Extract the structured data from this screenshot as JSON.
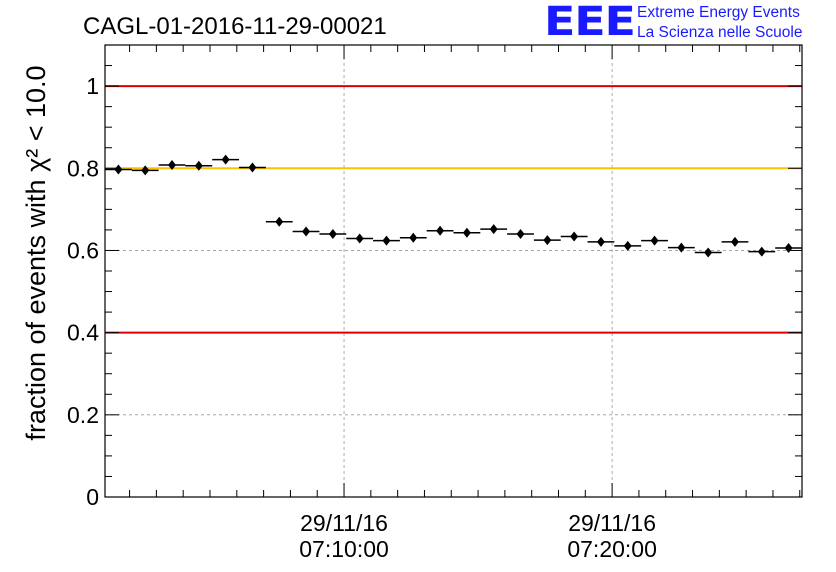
{
  "logo": {
    "mark": "EEE",
    "line1": "Extreme Energy Events",
    "line2": "La Scienza nelle Scuole",
    "color": "#1a1aff"
  },
  "chart_data": {
    "type": "scatter",
    "title": "CAGL-01-2016-11-29-00021",
    "ylabel": "fraction of events with χ² < 10.0",
    "ylim": [
      0,
      1.1
    ],
    "yticks": [
      0,
      0.2,
      0.4,
      0.6,
      0.8,
      1
    ],
    "ytick_labels": [
      "0",
      "0.2",
      "0.4",
      "0.6",
      "0.8",
      "1"
    ],
    "xlim": [
      "2016-11-29 07:01:05",
      "2016-11-29 07:27:05"
    ],
    "xticks": [
      "2016-11-29 07:10:00",
      "2016-11-29 07:20:00"
    ],
    "xtick_labels": [
      [
        "29/11/16",
        "07:10:00"
      ],
      [
        "29/11/16",
        "07:20:00"
      ]
    ],
    "grid": true,
    "reference_lines": [
      {
        "y": 1.0,
        "color": "#dd0000"
      },
      {
        "y": 0.8,
        "color": "#ffc000"
      },
      {
        "y": 0.4,
        "color": "#dd0000"
      }
    ],
    "series": [
      {
        "color": "#000000",
        "x": [
          "2016-11-29 07:01:35",
          "2016-11-29 07:02:35",
          "2016-11-29 07:03:35",
          "2016-11-29 07:04:35",
          "2016-11-29 07:05:35",
          "2016-11-29 07:06:35",
          "2016-11-29 07:07:35",
          "2016-11-29 07:08:35",
          "2016-11-29 07:09:35",
          "2016-11-29 07:10:35",
          "2016-11-29 07:11:35",
          "2016-11-29 07:12:35",
          "2016-11-29 07:13:35",
          "2016-11-29 07:14:35",
          "2016-11-29 07:15:35",
          "2016-11-29 07:16:35",
          "2016-11-29 07:17:35",
          "2016-11-29 07:18:35",
          "2016-11-29 07:19:35",
          "2016-11-29 07:20:35",
          "2016-11-29 07:21:35",
          "2016-11-29 07:22:35",
          "2016-11-29 07:23:35",
          "2016-11-29 07:24:35",
          "2016-11-29 07:25:35",
          "2016-11-29 07:26:35"
        ],
        "y": [
          0.797,
          0.795,
          0.808,
          0.806,
          0.821,
          0.802,
          0.67,
          0.646,
          0.64,
          0.629,
          0.624,
          0.631,
          0.648,
          0.643,
          0.652,
          0.64,
          0.625,
          0.634,
          0.621,
          0.611,
          0.624,
          0.607,
          0.595,
          0.621,
          0.597,
          0.606
        ]
      }
    ]
  }
}
